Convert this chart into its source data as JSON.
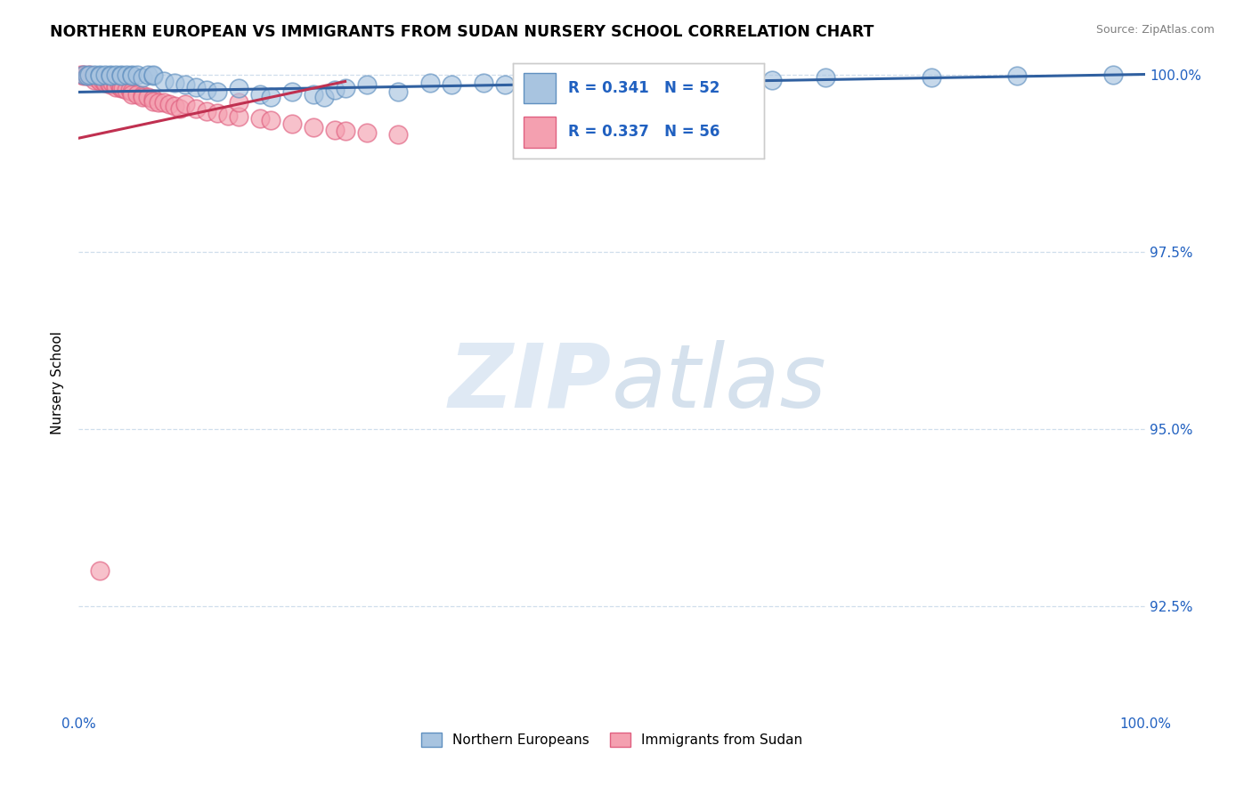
{
  "title": "NORTHERN EUROPEAN VS IMMIGRANTS FROM SUDAN NURSERY SCHOOL CORRELATION CHART",
  "source": "Source: ZipAtlas.com",
  "ylabel": "Nursery School",
  "xlim": [
    0,
    1.0
  ],
  "ylim": [
    0.91,
    1.003
  ],
  "yticks": [
    0.925,
    0.95,
    0.975,
    1.0
  ],
  "yticklabels": [
    "92.5%",
    "95.0%",
    "97.5%",
    "100.0%"
  ],
  "xticks": [
    0.0,
    0.25,
    0.5,
    0.75,
    1.0
  ],
  "xticklabels": [
    "0.0%",
    "",
    "",
    "",
    "100.0%"
  ],
  "blue_R": 0.341,
  "blue_N": 52,
  "pink_R": 0.337,
  "pink_N": 56,
  "blue_color": "#a8c4e0",
  "pink_color": "#f4a0b0",
  "blue_edge_color": "#6090c0",
  "pink_edge_color": "#e06080",
  "blue_line_color": "#3060a0",
  "pink_line_color": "#c03050",
  "legend_label_blue": "Northern Europeans",
  "legend_label_pink": "Immigrants from Sudan",
  "watermark_zip": "ZIP",
  "watermark_atlas": "atlas",
  "grid_color": "#b0c8e0",
  "blue_scatter_x": [
    0.005,
    0.008,
    0.01,
    0.015,
    0.02,
    0.02,
    0.025,
    0.03,
    0.03,
    0.035,
    0.04,
    0.04,
    0.045,
    0.05,
    0.05,
    0.055,
    0.06,
    0.065,
    0.07,
    0.07,
    0.08,
    0.09,
    0.1,
    0.11,
    0.12,
    0.13,
    0.15,
    0.17,
    0.18,
    0.2,
    0.22,
    0.23,
    0.24,
    0.25,
    0.27,
    0.3,
    0.33,
    0.35,
    0.38,
    0.4,
    0.43,
    0.45,
    0.48,
    0.5,
    0.53,
    0.55,
    0.6,
    0.65,
    0.7,
    0.8,
    0.88,
    0.97
  ],
  "blue_scatter_y": [
    1.0,
    0.9998,
    1.0,
    1.0,
    1.0,
    0.9998,
    1.0,
    1.0,
    0.9998,
    1.0,
    1.0,
    0.9998,
    1.0,
    1.0,
    0.9998,
    1.0,
    0.9995,
    1.0,
    0.9998,
    1.0,
    0.999,
    0.9988,
    0.9985,
    0.9982,
    0.9978,
    0.9975,
    0.998,
    0.9972,
    0.9968,
    0.9975,
    0.9972,
    0.9968,
    0.9978,
    0.998,
    0.9985,
    0.9975,
    0.9988,
    0.9985,
    0.9988,
    0.9985,
    0.999,
    0.9988,
    0.9985,
    0.999,
    0.9988,
    0.9985,
    0.9992,
    0.9992,
    0.9995,
    0.9995,
    0.9998,
    1.0
  ],
  "pink_scatter_x": [
    0.002,
    0.005,
    0.005,
    0.008,
    0.01,
    0.01,
    0.012,
    0.015,
    0.015,
    0.018,
    0.02,
    0.02,
    0.022,
    0.025,
    0.025,
    0.028,
    0.03,
    0.03,
    0.032,
    0.035,
    0.035,
    0.038,
    0.04,
    0.04,
    0.042,
    0.045,
    0.048,
    0.05,
    0.05,
    0.055,
    0.06,
    0.06,
    0.065,
    0.07,
    0.07,
    0.075,
    0.08,
    0.085,
    0.09,
    0.095,
    0.1,
    0.11,
    0.12,
    0.13,
    0.14,
    0.15,
    0.17,
    0.18,
    0.2,
    0.22,
    0.24,
    0.25,
    0.27,
    0.3,
    0.15,
    0.02
  ],
  "pink_scatter_y": [
    1.0,
    1.0,
    0.9998,
    0.9998,
    1.0,
    0.9998,
    0.9998,
    0.9995,
    0.9992,
    0.9995,
    0.9992,
    0.999,
    0.9992,
    0.999,
    0.9988,
    0.9988,
    0.999,
    0.9985,
    0.9988,
    0.9985,
    0.9982,
    0.9985,
    0.9982,
    0.998,
    0.998,
    0.9978,
    0.9978,
    0.9975,
    0.9972,
    0.9972,
    0.997,
    0.9968,
    0.9968,
    0.9965,
    0.9962,
    0.996,
    0.996,
    0.9958,
    0.9955,
    0.9952,
    0.9958,
    0.9952,
    0.9948,
    0.9945,
    0.9942,
    0.994,
    0.9938,
    0.9935,
    0.993,
    0.9925,
    0.9922,
    0.992,
    0.9918,
    0.9915,
    0.996,
    0.93
  ],
  "blue_line_x0": 0.0,
  "blue_line_x1": 1.0,
  "blue_line_y0": 0.9975,
  "blue_line_y1": 1.0,
  "pink_line_x0": 0.0,
  "pink_line_x1": 0.25,
  "pink_line_y0": 0.991,
  "pink_line_y1": 0.999
}
